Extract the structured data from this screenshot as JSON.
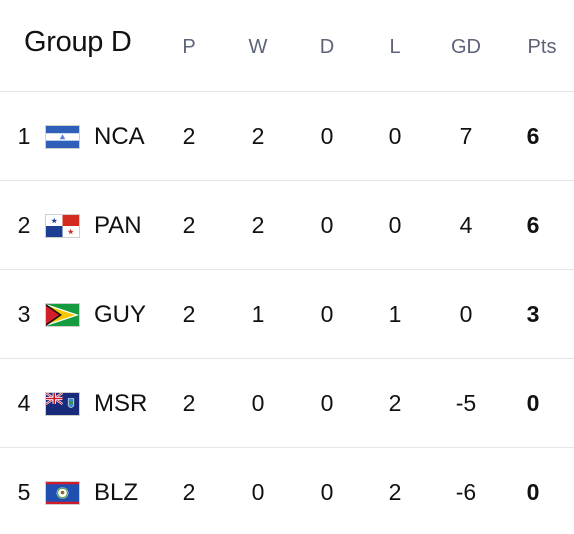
{
  "header": {
    "title": "Group D",
    "columns": {
      "p": "P",
      "w": "W",
      "d": "D",
      "l": "L",
      "gd": "GD",
      "pts": "Pts"
    }
  },
  "rows": [
    {
      "rank": "1",
      "team": "NCA",
      "flag_icon": "nicaragua-flag-icon",
      "p": "2",
      "w": "2",
      "d": "0",
      "l": "0",
      "gd": "7",
      "pts": "6"
    },
    {
      "rank": "2",
      "team": "PAN",
      "flag_icon": "panama-flag-icon",
      "p": "2",
      "w": "2",
      "d": "0",
      "l": "0",
      "gd": "4",
      "pts": "6"
    },
    {
      "rank": "3",
      "team": "GUY",
      "flag_icon": "guyana-flag-icon",
      "p": "2",
      "w": "1",
      "d": "0",
      "l": "1",
      "gd": "0",
      "pts": "3"
    },
    {
      "rank": "4",
      "team": "MSR",
      "flag_icon": "montserrat-flag-icon",
      "p": "2",
      "w": "0",
      "d": "0",
      "l": "2",
      "gd": "-5",
      "pts": "0"
    },
    {
      "rank": "5",
      "team": "BLZ",
      "flag_icon": "belize-flag-icon",
      "p": "2",
      "w": "0",
      "d": "0",
      "l": "2",
      "gd": "-6",
      "pts": "0"
    }
  ],
  "colors": {
    "header_text": "#5d6478",
    "divider": "#e6e6e6",
    "text": "#111111"
  }
}
